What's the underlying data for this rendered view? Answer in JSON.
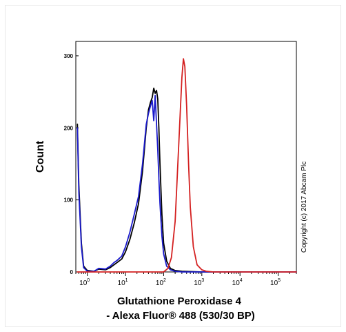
{
  "chart_data": {
    "type": "line",
    "xlabel_line1": "Glutathione Peroxidase 4",
    "xlabel_line2": "- Alexa Fluor® 488 (530/30 BP)",
    "ylabel": "Count",
    "x_scale": "log",
    "xlim": [
      0.5,
      300000
    ],
    "ylim": [
      0,
      320
    ],
    "y_ticks": [
      "0",
      "100",
      "200",
      "300"
    ],
    "x_ticks": [
      {
        "base": "10",
        "exp": "0"
      },
      {
        "base": "10",
        "exp": "1"
      },
      {
        "base": "10",
        "exp": "2"
      },
      {
        "base": "10",
        "exp": "3"
      },
      {
        "base": "10",
        "exp": "4"
      },
      {
        "base": "10",
        "exp": "5"
      }
    ],
    "annotation": "Copyright (c) 2017 Abcam Plc",
    "grid": false,
    "series": [
      {
        "color": "#000000",
        "x": [
          0.55,
          0.6,
          0.7,
          0.8,
          1,
          1.5,
          2,
          3,
          4,
          5,
          6,
          8,
          10,
          13,
          17,
          22,
          28,
          35,
          40,
          45,
          50,
          55,
          60,
          65,
          70,
          75,
          80,
          90,
          100,
          120,
          150,
          200,
          300,
          1000,
          10000,
          300000
        ],
        "y": [
          205,
          120,
          40,
          8,
          2,
          1,
          4,
          3,
          6,
          10,
          13,
          18,
          28,
          45,
          68,
          95,
          140,
          200,
          225,
          235,
          242,
          255,
          248,
          252,
          240,
          200,
          150,
          80,
          40,
          15,
          5,
          2,
          1,
          0,
          0,
          0
        ]
      },
      {
        "color": "#1a1acc",
        "x": [
          0.55,
          0.6,
          0.7,
          0.8,
          1,
          1.5,
          2,
          3,
          4,
          5,
          6,
          8,
          10,
          13,
          17,
          22,
          28,
          35,
          40,
          45,
          50,
          55,
          60,
          65,
          70,
          75,
          80,
          90,
          100,
          120,
          150,
          200,
          300,
          1000,
          10000,
          300000
        ],
        "y": [
          200,
          110,
          35,
          6,
          1,
          1,
          5,
          4,
          8,
          13,
          16,
          22,
          35,
          55,
          80,
          105,
          150,
          205,
          220,
          230,
          238,
          210,
          245,
          205,
          170,
          130,
          95,
          50,
          25,
          8,
          3,
          1,
          0,
          0,
          0,
          0
        ]
      },
      {
        "color": "#d42020",
        "x": [
          0.55,
          10,
          100,
          130,
          160,
          200,
          250,
          300,
          330,
          360,
          400,
          450,
          500,
          600,
          750,
          1000,
          1300,
          2000,
          300000
        ],
        "y": [
          0,
          0,
          0,
          5,
          20,
          70,
          180,
          270,
          296,
          285,
          230,
          150,
          90,
          35,
          10,
          3,
          1,
          0,
          0
        ]
      }
    ]
  }
}
